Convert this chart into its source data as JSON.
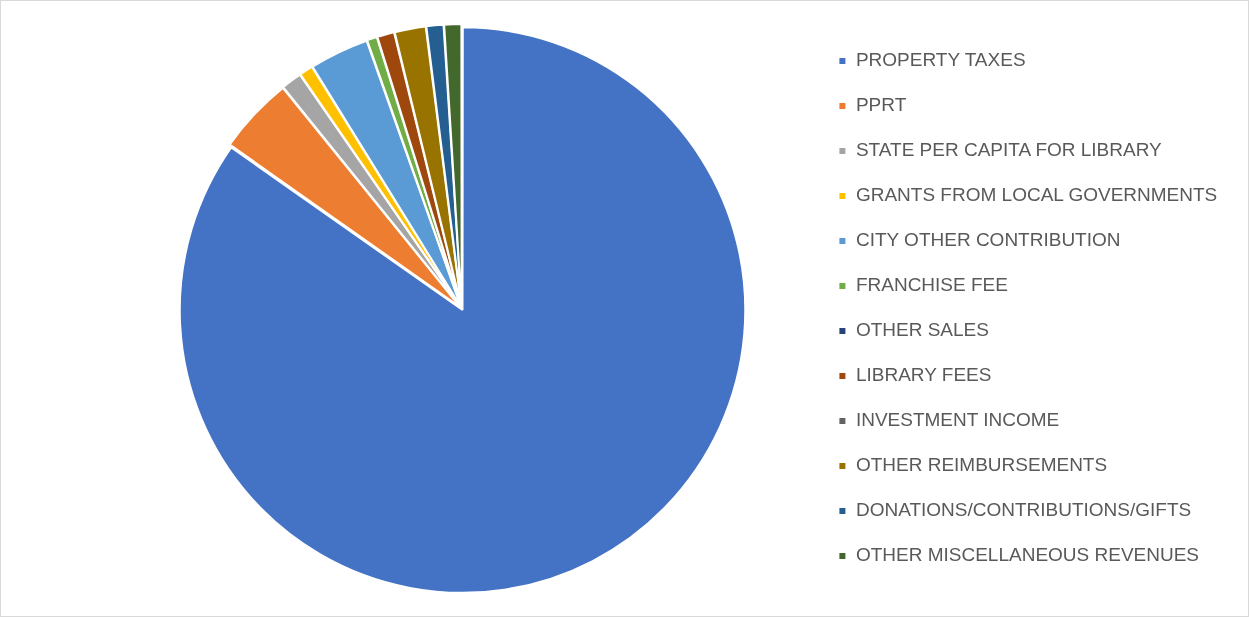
{
  "chart_data": {
    "type": "pie",
    "legend": "right",
    "categories": [
      "PROPERTY TAXES",
      "PPRT",
      "STATE PER CAPITA FOR LIBRARY",
      "GRANTS FROM LOCAL GOVERNMENTS",
      "CITY OTHER CONTRIBUTION",
      "FRANCHISE FEE",
      "OTHER SALES",
      "LIBRARY FEES",
      "INVESTMENT INCOME",
      "OTHER REIMBURSEMENTS",
      "DONATIONS/CONTRIBUTIONS/GIFTS",
      "OTHER MISCELLANEOUS REVENUES"
    ],
    "values": [
      84.6,
      4.4,
      1.2,
      0.8,
      3.4,
      0.6,
      null,
      1.0,
      null,
      1.8,
      1.0,
      1.0
    ],
    "colors": [
      "#4472c4",
      "#ed7d31",
      "#a5a5a5",
      "#ffc000",
      "#5b9bd5",
      "#70ad47",
      "#264478",
      "#9e480e",
      "#636363",
      "#997300",
      "#255e91",
      "#43682b"
    ]
  }
}
